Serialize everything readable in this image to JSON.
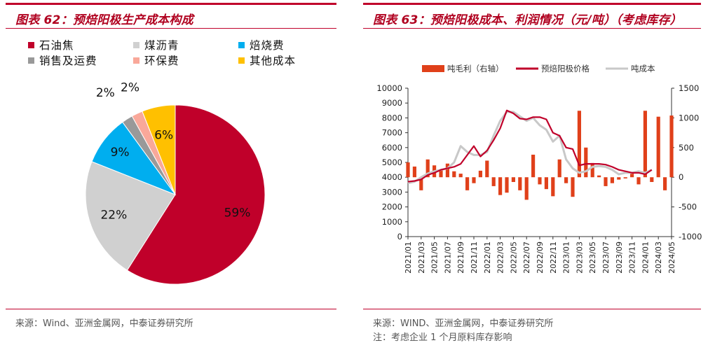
{
  "left": {
    "title": "图表 62：预焙阳极生产成本构成",
    "source": "来源：Wind、亚洲金属网，中泰证券研究所"
  },
  "right": {
    "title": "图表 63：预焙阳极成本、利润情况（元/吨）（考虑库存）",
    "source": "来源：WIND、亚洲金属网，中泰证券研究所",
    "note": "注：考虑企业 1 个月原料库存影响"
  },
  "chart_data": [
    {
      "type": "pie",
      "title": "",
      "legend_position": "top",
      "slices": [
        {
          "label": "石油焦",
          "value": 59,
          "display": "59%",
          "color": "#c0002a"
        },
        {
          "label": "煤沥青",
          "value": 22,
          "display": "22%",
          "color": "#d0d0d0"
        },
        {
          "label": "焙烧费",
          "value": 9,
          "display": "9%",
          "color": "#00aeef"
        },
        {
          "label": "销售及运费",
          "value": 2,
          "display": "2%",
          "color": "#999999"
        },
        {
          "label": "环保费",
          "value": 2,
          "display": "2%",
          "color": "#f9a89a"
        },
        {
          "label": "其他成本",
          "value": 6,
          "display": "6%",
          "color": "#ffc000"
        }
      ],
      "legend_order": [
        "石油焦",
        "煤沥青",
        "焙烧费",
        "销售及运费",
        "环保费",
        "其他成本"
      ]
    },
    {
      "type": "line",
      "title": "",
      "legend_position": "top",
      "ylim": [
        0,
        10000
      ],
      "yticks": [
        0,
        1000,
        2000,
        3000,
        4000,
        5000,
        6000,
        7000,
        8000,
        9000,
        10000
      ],
      "y2lim": [
        -1000,
        1500
      ],
      "y2ticks": [
        -1000,
        -500,
        0,
        500,
        1000,
        1500
      ],
      "x_ticks": [
        "2021/01",
        "2021/03",
        "2021/05",
        "2021/07",
        "2021/09",
        "2021/11",
        "2022/01",
        "2022/03",
        "2022/05",
        "2022/07",
        "2022/09",
        "2022/11",
        "2023/01",
        "2023/03",
        "2023/05",
        "2023/07",
        "2023/09",
        "2023/11",
        "2024/01",
        "2024/03",
        "2024/05"
      ],
      "series": [
        {
          "name": "吨毛利（右轴）",
          "kind": "bar",
          "axis": "right",
          "color": "#e0401a",
          "points": [
            [
              "2021/01",
              250
            ],
            [
              "2021/02",
              180
            ],
            [
              "2021/03",
              -220
            ],
            [
              "2021/04",
              300
            ],
            [
              "2021/05",
              200
            ],
            [
              "2021/06",
              120
            ],
            [
              "2021/07",
              230
            ],
            [
              "2021/08",
              100
            ],
            [
              "2021/09",
              60
            ],
            [
              "2021/10",
              -220
            ],
            [
              "2021/11",
              -100
            ],
            [
              "2021/12",
              110
            ],
            [
              "2022/01",
              280
            ],
            [
              "2022/02",
              -150
            ],
            [
              "2022/03",
              -300
            ],
            [
              "2022/04",
              -260
            ],
            [
              "2022/05",
              -80
            ],
            [
              "2022/06",
              -220
            ],
            [
              "2022/07",
              -380
            ],
            [
              "2022/08",
              380
            ],
            [
              "2022/09",
              -120
            ],
            [
              "2022/10",
              -200
            ],
            [
              "2022/11",
              -320
            ],
            [
              "2022/12",
              300
            ],
            [
              "2023/01",
              -100
            ],
            [
              "2023/02",
              -330
            ],
            [
              "2023/03",
              1120
            ],
            [
              "2023/04",
              500
            ],
            [
              "2023/05",
              240
            ],
            [
              "2023/06",
              30
            ],
            [
              "2023/07",
              -150
            ],
            [
              "2023/08",
              -100
            ],
            [
              "2023/09",
              -40
            ],
            [
              "2023/10",
              -20
            ],
            [
              "2023/11",
              60
            ],
            [
              "2023/12",
              -120
            ],
            [
              "2024/01",
              1120
            ],
            [
              "2024/02",
              -80
            ],
            [
              "2024/03",
              1020
            ],
            [
              "2024/04",
              -220
            ],
            [
              "2024/05",
              1040
            ]
          ]
        },
        {
          "name": "预焙阳极价格",
          "kind": "line",
          "axis": "left",
          "color": "#c0002a",
          "points": [
            [
              "2021/01",
              3700
            ],
            [
              "2021/02",
              3750
            ],
            [
              "2021/03",
              3850
            ],
            [
              "2021/04",
              4150
            ],
            [
              "2021/05",
              4300
            ],
            [
              "2021/06",
              4500
            ],
            [
              "2021/07",
              4600
            ],
            [
              "2021/08",
              4700
            ],
            [
              "2021/09",
              4900
            ],
            [
              "2021/10",
              5500
            ],
            [
              "2021/11",
              6100
            ],
            [
              "2021/12",
              5400
            ],
            [
              "2022/01",
              5800
            ],
            [
              "2022/02",
              6500
            ],
            [
              "2022/03",
              7300
            ],
            [
              "2022/04",
              8500
            ],
            [
              "2022/05",
              8300
            ],
            [
              "2022/06",
              7950
            ],
            [
              "2022/07",
              7900
            ],
            [
              "2022/08",
              8050
            ],
            [
              "2022/09",
              8050
            ],
            [
              "2022/10",
              7900
            ],
            [
              "2022/11",
              7000
            ],
            [
              "2022/12",
              6800
            ],
            [
              "2023/01",
              6000
            ],
            [
              "2023/02",
              5900
            ],
            [
              "2023/03",
              4800
            ],
            [
              "2023/04",
              4900
            ],
            [
              "2023/05",
              4900
            ],
            [
              "2023/06",
              4900
            ],
            [
              "2023/07",
              4850
            ],
            [
              "2023/08",
              4700
            ],
            [
              "2023/09",
              4500
            ],
            [
              "2023/10",
              4400
            ],
            [
              "2023/11",
              4300
            ],
            [
              "2023/12",
              4300
            ],
            [
              "2024/01",
              4200
            ],
            [
              "2024/02",
              4500
            ]
          ]
        },
        {
          "name": "吨成本",
          "kind": "line",
          "axis": "left",
          "color": "#c8c8c8",
          "points": [
            [
              "2021/01",
              3600
            ],
            [
              "2021/02",
              3700
            ],
            [
              "2021/03",
              4000
            ],
            [
              "2021/04",
              4250
            ],
            [
              "2021/05",
              4400
            ],
            [
              "2021/06",
              4500
            ],
            [
              "2021/07",
              4600
            ],
            [
              "2021/08",
              5000
            ],
            [
              "2021/09",
              6100
            ],
            [
              "2021/10",
              5700
            ],
            [
              "2021/11",
              5500
            ],
            [
              "2021/12",
              5500
            ],
            [
              "2022/01",
              5700
            ],
            [
              "2022/02",
              6800
            ],
            [
              "2022/03",
              7800
            ],
            [
              "2022/04",
              8400
            ],
            [
              "2022/05",
              8400
            ],
            [
              "2022/06",
              8100
            ],
            [
              "2022/07",
              7800
            ],
            [
              "2022/08",
              8000
            ],
            [
              "2022/09",
              7500
            ],
            [
              "2022/10",
              7200
            ],
            [
              "2022/11",
              6400
            ],
            [
              "2022/12",
              6800
            ],
            [
              "2023/01",
              5200
            ],
            [
              "2023/02",
              4600
            ],
            [
              "2023/03",
              4300
            ],
            [
              "2023/04",
              4400
            ],
            [
              "2023/05",
              4700
            ],
            [
              "2023/06",
              4750
            ],
            [
              "2023/07",
              4700
            ],
            [
              "2023/08",
              4500
            ],
            [
              "2023/09",
              4200
            ],
            [
              "2023/10",
              4300
            ],
            [
              "2023/11",
              4300
            ],
            [
              "2023/12",
              4400
            ],
            [
              "2024/01",
              4300
            ],
            [
              "2024/02",
              4500
            ]
          ]
        }
      ]
    }
  ]
}
